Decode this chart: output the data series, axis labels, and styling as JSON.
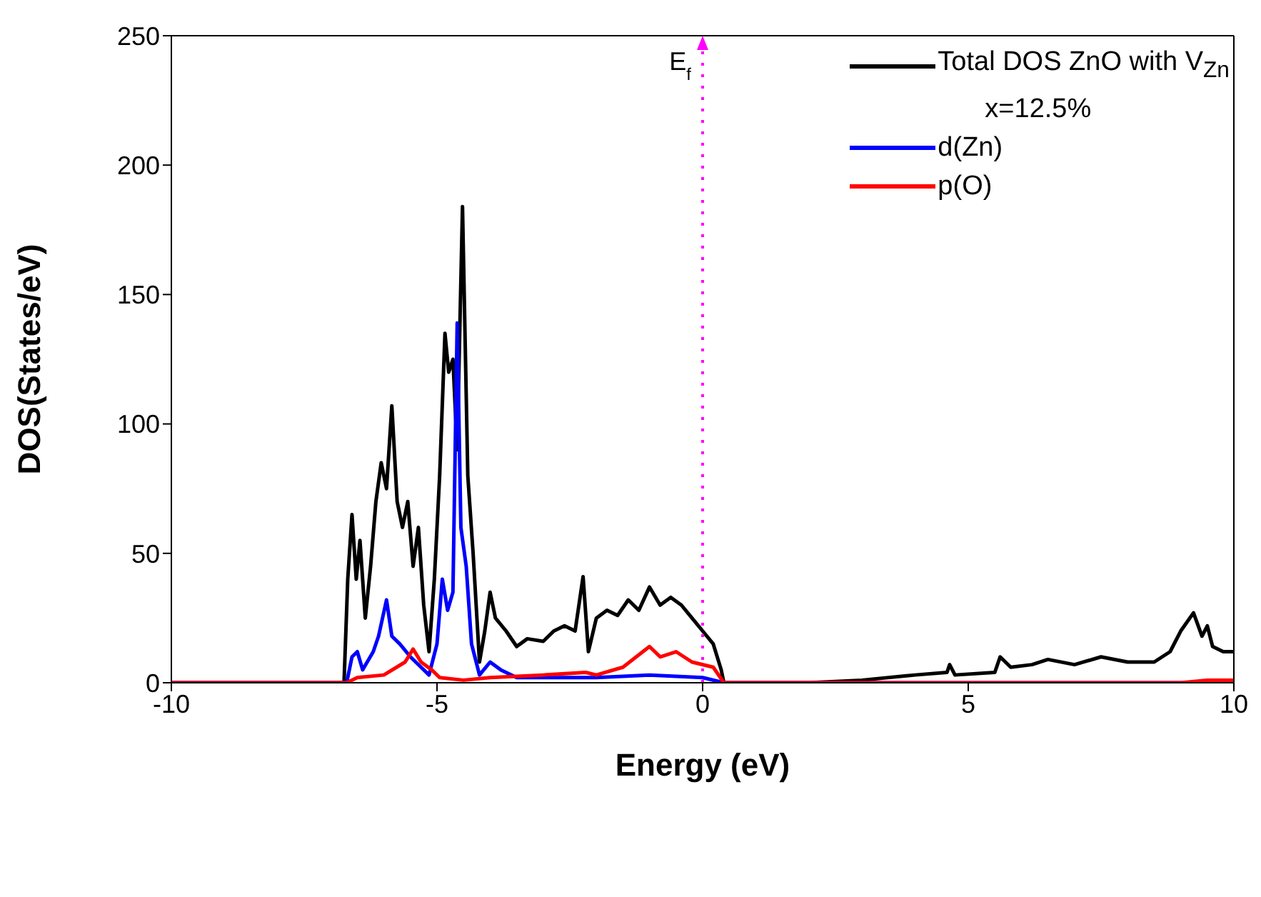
{
  "chart_data": {
    "type": "line",
    "xlabel": "Energy (eV)",
    "ylabel": "DOS(States/eV)",
    "xlim": [
      -10,
      10
    ],
    "xticks": [
      -10,
      -5,
      0,
      5,
      10
    ],
    "ylim": [
      0,
      250
    ],
    "yticks": [
      0,
      50,
      100,
      150,
      200,
      250
    ],
    "grid": false,
    "legend": "top right",
    "marker": "none",
    "line_style": "solid",
    "annotations": [
      "x=12.5%"
    ],
    "ref_lines": [
      {
        "axis": "x",
        "value": 0,
        "label": "E$_{f}$",
        "color": "#ff00ff",
        "line_style": "dotted"
      }
    ],
    "series": [
      {
        "name": "Total DOS ZnO with V$_{Zn}$",
        "color": "#000000",
        "x": [
          -10,
          -6.75,
          -6.68,
          -6.6,
          -6.52,
          -6.45,
          -6.35,
          -6.25,
          -6.15,
          -6.05,
          -5.95,
          -5.85,
          -5.75,
          -5.65,
          -5.55,
          -5.45,
          -5.35,
          -5.25,
          -5.15,
          -5.05,
          -4.95,
          -4.85,
          -4.78,
          -4.7,
          -4.62,
          -4.52,
          -4.42,
          -4.32,
          -4.2,
          -4.1,
          -4.0,
          -3.9,
          -3.7,
          -3.5,
          -3.3,
          -3.0,
          -2.8,
          -2.6,
          -2.4,
          -2.25,
          -2.15,
          -2.0,
          -1.8,
          -1.6,
          -1.4,
          -1.2,
          -1.0,
          -0.8,
          -0.6,
          -0.4,
          -0.2,
          0.0,
          0.2,
          0.35,
          0.4,
          2.0,
          3.0,
          4.0,
          4.6,
          4.65,
          4.75,
          5.5,
          5.6,
          5.8,
          6.2,
          6.5,
          7.0,
          7.5,
          8.0,
          8.5,
          8.8,
          9.0,
          9.24,
          9.4,
          9.5,
          9.6,
          9.8,
          10
        ],
        "values": [
          0,
          0,
          40,
          65,
          40,
          55,
          25,
          45,
          70,
          85,
          75,
          107,
          70,
          60,
          70,
          45,
          60,
          30,
          12,
          40,
          80,
          135,
          120,
          125,
          90,
          184,
          80,
          50,
          8,
          20,
          35,
          25,
          20,
          14,
          17,
          16,
          20,
          22,
          20,
          41,
          12,
          25,
          28,
          26,
          32,
          28,
          37,
          30,
          33,
          30,
          25,
          20,
          15,
          5,
          0,
          0,
          1,
          3,
          4,
          7,
          3,
          4,
          10,
          6,
          7,
          9,
          7,
          10,
          8,
          8,
          12,
          20,
          27,
          18,
          22,
          14,
          12,
          12
        ]
      },
      {
        "name": "d(Zn)",
        "color": "#0000ff",
        "x": [
          -10,
          -6.7,
          -6.6,
          -6.5,
          -6.4,
          -6.2,
          -6.1,
          -5.95,
          -5.85,
          -5.7,
          -5.5,
          -5.3,
          -5.15,
          -5.0,
          -4.9,
          -4.8,
          -4.7,
          -4.62,
          -4.55,
          -4.45,
          -4.35,
          -4.2,
          -4.0,
          -3.8,
          -3.5,
          -3,
          -2,
          -1,
          0,
          0.4,
          10
        ],
        "values": [
          0,
          0,
          10,
          12,
          5,
          12,
          18,
          32,
          18,
          15,
          10,
          6,
          3,
          15,
          40,
          28,
          35,
          139,
          60,
          45,
          15,
          3,
          8,
          5,
          2,
          2,
          2,
          3,
          2,
          0,
          0
        ]
      },
      {
        "name": "p(O)",
        "color": "#ff0000",
        "x": [
          -10,
          -6.7,
          -6.5,
          -6.0,
          -5.6,
          -5.45,
          -5.3,
          -5.1,
          -4.95,
          -4.5,
          -4,
          -3,
          -2.2,
          -2,
          -1.5,
          -1.0,
          -0.8,
          -0.5,
          -0.2,
          0.2,
          0.4,
          9,
          9.5,
          10
        ],
        "values": [
          0,
          0,
          2,
          3,
          8,
          13,
          8,
          5,
          2,
          1,
          2,
          3,
          4,
          3,
          6,
          14,
          10,
          12,
          8,
          6,
          0,
          0,
          1,
          1
        ]
      }
    ]
  }
}
